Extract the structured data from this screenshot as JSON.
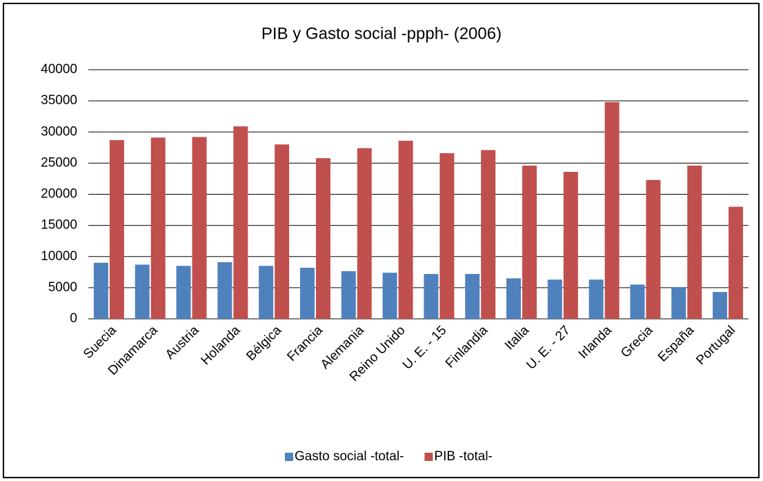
{
  "chart_data": {
    "type": "bar",
    "title": "PIB y Gasto social -ppph- (2006)",
    "categories": [
      "Suecia",
      "Dinamarca",
      "Austria",
      "Holanda",
      "Bélgica",
      "Francia",
      "Alemania",
      "Reino Unido",
      "U. E. - 15",
      "Finlandia",
      "Italia",
      "U. E. - 27",
      "Irlanda",
      "Grecia",
      "España",
      "Portugal"
    ],
    "series": [
      {
        "name": "Gasto social -total-",
        "color": "#4f81bd",
        "values": [
          9000,
          8700,
          8500,
          9100,
          8500,
          8200,
          7650,
          7400,
          7200,
          7200,
          6500,
          6300,
          6300,
          5500,
          5100,
          4300
        ]
      },
      {
        "name": "PIB -total-",
        "color": "#c0504d",
        "values": [
          28700,
          29100,
          29200,
          30900,
          28000,
          25800,
          27400,
          28600,
          26600,
          27100,
          24600,
          23600,
          34800,
          22300,
          24600,
          18000
        ]
      }
    ],
    "ylim": [
      0,
      40000
    ],
    "yticks": [
      0,
      5000,
      10000,
      15000,
      20000,
      25000,
      30000,
      35000,
      40000
    ],
    "grid": true,
    "legend": "bottom"
  }
}
